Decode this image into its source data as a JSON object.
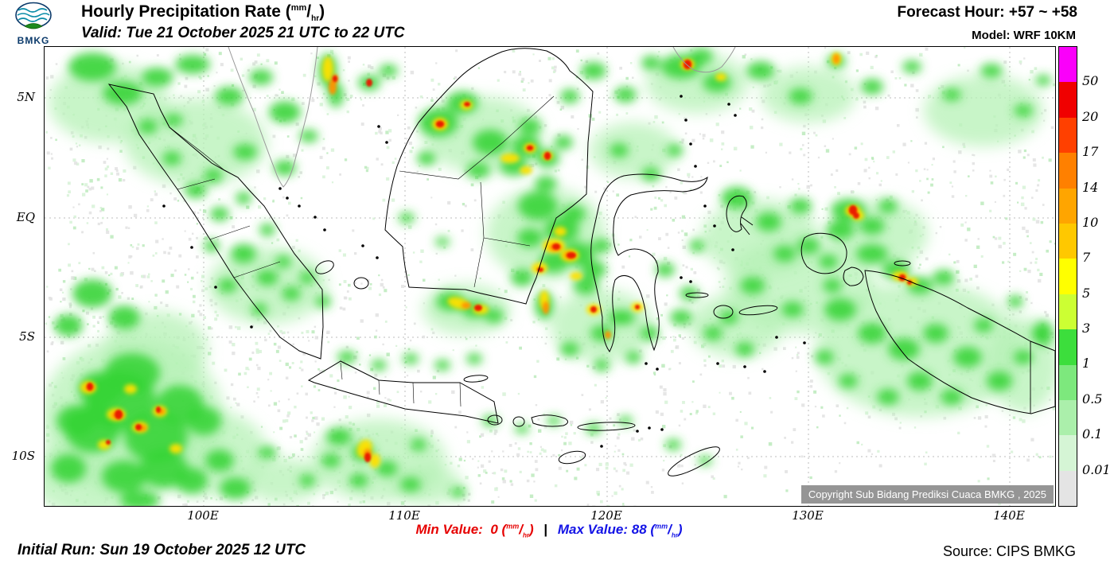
{
  "header": {
    "logo_text": "BMKG",
    "title": "Hourly Precipitation Rate",
    "valid_line": "Valid: Tue 21 October 2025 21 UTC to 22 UTC",
    "forecast_hour": "Forecast Hour: +57 ~ +58",
    "model": "Model: WRF 10KM"
  },
  "unit": {
    "open": "(",
    "num": "mm",
    "slash": "/",
    "den": "hr",
    "close": ")"
  },
  "map": {
    "lat_labels": [
      "5N",
      "EQ",
      "5S",
      "10S"
    ],
    "lon_labels": [
      "100E",
      "110E",
      "120E",
      "130E",
      "140E"
    ],
    "copyright": "Copyright Sub Bidang Prediksi Cuaca BMKG , 2025"
  },
  "legend": {
    "values": [
      "50",
      "20",
      "17",
      "14",
      "10",
      "7",
      "5",
      "3",
      "1",
      "0.5",
      "0.1",
      "0.01"
    ],
    "colors": [
      "#fa00fa",
      "#f00000",
      "#ff4000",
      "#ff8000",
      "#ffa500",
      "#ffc800",
      "#ffff00",
      "#ccff33",
      "#3cde3c",
      "#7de87d",
      "#abefab",
      "#d5f5d5",
      "#e4e4e4"
    ]
  },
  "footer": {
    "min_label": "Min Value:",
    "min_value": "0",
    "separator": "|",
    "max_label": "Max Value:",
    "max_value": "88",
    "min_color": "#e60000",
    "max_color": "#1414e6",
    "initial_run": "Initial Run: Sun 19 October 2025 12 UTC",
    "source": "Source: CIPS BMKG"
  }
}
